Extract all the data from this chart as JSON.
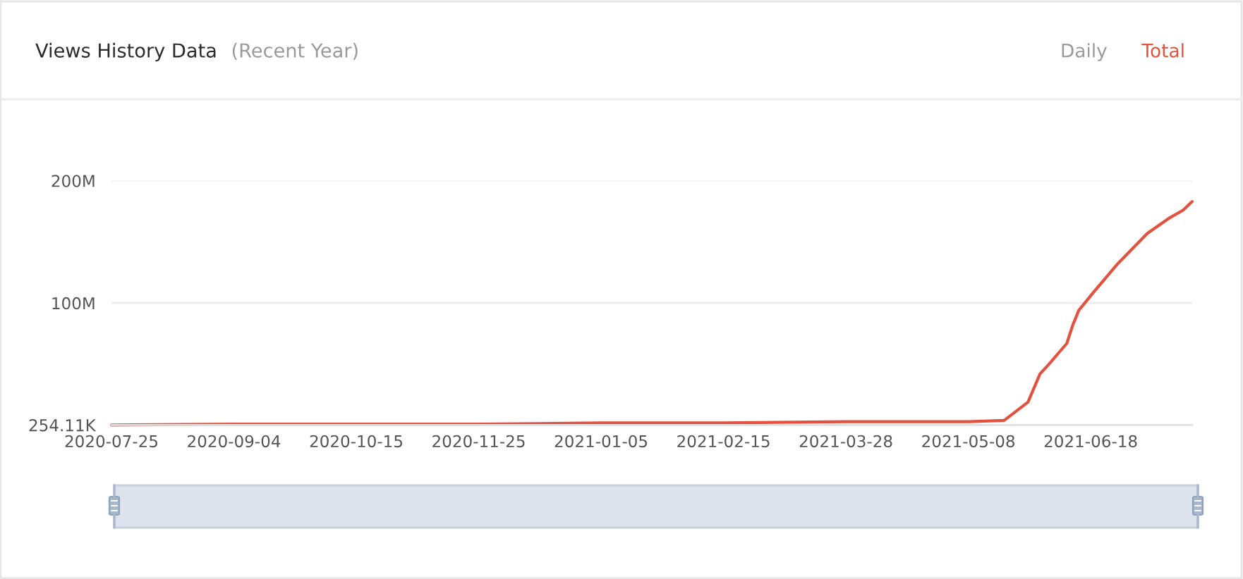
{
  "chart_data": {
    "type": "line",
    "title": "Views History Data",
    "subtitle": "(Recent Year)",
    "annotations": [
      "Daily",
      "Total"
    ],
    "series": [
      {
        "color": "#e4523f",
        "x": [
          "2020-07-25",
          "2020-09-04",
          "2020-10-15",
          "2020-11-25",
          "2021-01-05",
          "2021-02-15",
          "2021-03-28",
          "2021-05-08",
          "2021-05-20",
          "2021-05-28",
          "2021-06-01",
          "2021-06-04",
          "2021-06-10",
          "2021-06-12",
          "2021-06-14",
          "2021-06-19",
          "2021-06-27",
          "2021-07-01",
          "2021-07-07",
          "2021-07-14",
          "2021-07-19",
          "2021-07-22"
        ],
        "values": [
          254110,
          1000000,
          1000000,
          1000000,
          2000000,
          2000000,
          3000000,
          3000000,
          4000000,
          19000000,
          42000000,
          50000000,
          67000000,
          82000000,
          94000000,
          109000000,
          132000000,
          142000000,
          157000000,
          169000000,
          176000000,
          183000000
        ]
      }
    ],
    "xlim": [
      "2020-07-25",
      "2021-07-22"
    ],
    "xticks": [
      "2020-07-25",
      "2020-09-04",
      "2020-10-15",
      "2020-11-25",
      "2021-01-05",
      "2021-02-15",
      "2021-03-28",
      "2021-05-08",
      "2021-06-18"
    ],
    "ylim": [
      254110,
      200000000
    ],
    "yticks": [
      {
        "value": 254110,
        "label": "254.11K"
      },
      {
        "value": 100000000,
        "label": "100M"
      },
      {
        "value": 200000000,
        "label": "200M"
      }
    ],
    "grid": "y"
  }
}
